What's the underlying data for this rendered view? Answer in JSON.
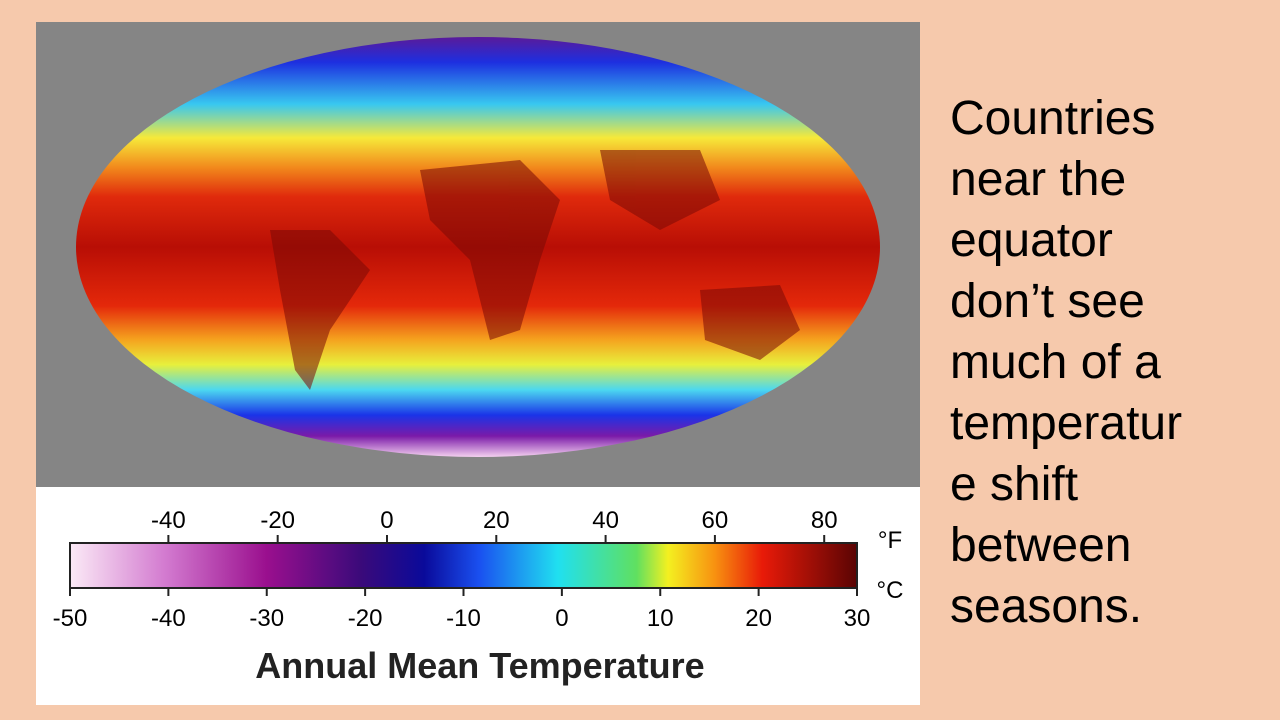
{
  "colorbar": {
    "title": "Annual Mean Temperature",
    "fahrenheit_unit": "°F",
    "celsius_unit": "°C",
    "fahrenheit_lim": [
      -58,
      86
    ],
    "fahrenheit_ticks": [
      -40,
      -20,
      0,
      20,
      40,
      60,
      80
    ],
    "celsius_lim": [
      -50,
      30
    ],
    "celsius_ticks": [
      -50,
      -40,
      -30,
      -20,
      -10,
      0,
      10,
      20,
      30
    ]
  },
  "note_lines": [
    "Countries",
    "near the",
    "equator",
    "don’t see",
    "much of a",
    "temperatur",
    "e shift",
    "between",
    "seasons."
  ]
}
